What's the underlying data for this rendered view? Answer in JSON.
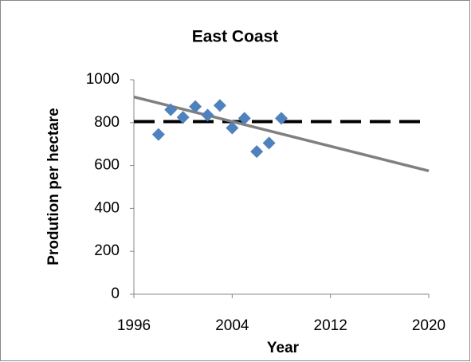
{
  "chart_data": {
    "type": "scatter",
    "title": "East Coast",
    "x_label": "Year",
    "y_label": "Prodution per hectare",
    "x": [
      1998,
      1999,
      2000,
      2001,
      2002,
      2003,
      2004,
      2005,
      2006,
      2007,
      2008
    ],
    "values": [
      745,
      860,
      825,
      875,
      835,
      880,
      775,
      820,
      665,
      705,
      820
    ],
    "color": "#4f81bd",
    "trendline": {
      "x": [
        1996,
        2020
      ],
      "values": [
        920,
        575
      ],
      "color": "#808080"
    },
    "reference_line": {
      "value": 805,
      "color": "#000000",
      "dashed": true
    },
    "xlim": [
      1996,
      2020
    ],
    "xticks": [
      1996,
      2004,
      2012,
      2020
    ],
    "ylim": [
      0,
      1000
    ],
    "yticks": [
      0,
      200,
      400,
      600,
      800,
      1000
    ],
    "grid": false
  }
}
